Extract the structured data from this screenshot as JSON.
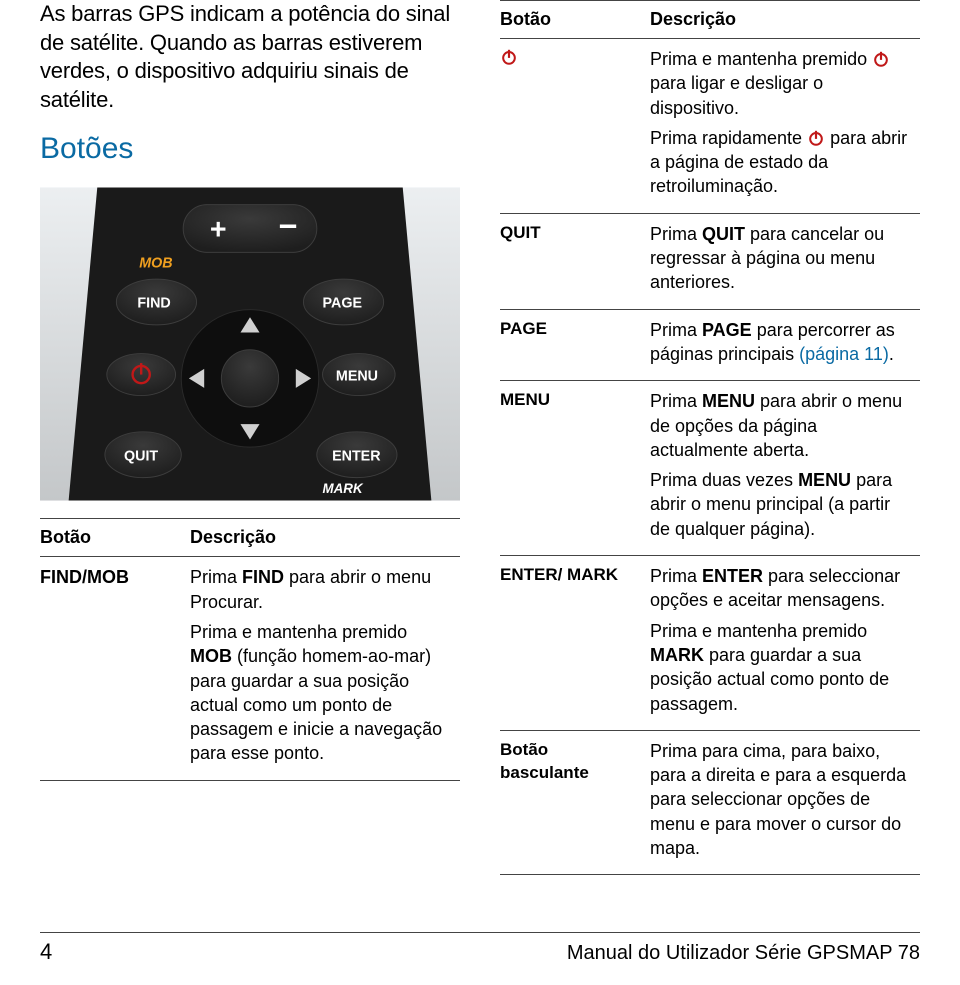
{
  "intro": "As barras GPS indicam a potência do sinal de satélite. Quando as barras estiverem verdes, o dispositivo adquiriu sinais de satélite.",
  "section_title": "Botões",
  "colors": {
    "link": "#0a6aa3",
    "text": "#000000",
    "border": "#444444",
    "power_red": "#c01818"
  },
  "remote": {
    "labels": {
      "mob": {
        "text": "MOB",
        "color": "#f0a020"
      },
      "find": "FIND",
      "page": "PAGE",
      "menu": "MENU",
      "quit": "QUIT",
      "enter": "ENTER",
      "mark": "MARK",
      "plus": "+",
      "minus": "−"
    },
    "body_color": "#1a1a1a",
    "button_fill": "#2c2c2c",
    "button_stroke": "#3d3d3d",
    "dpad_center": "#111111",
    "bg_gradient_top": "#eceff1",
    "bg_gradient_bottom": "#c4c7c9"
  },
  "left_table": {
    "headers": {
      "col1": "Botão",
      "col2": "Descrição"
    },
    "rows": [
      {
        "key": "FIND/MOB",
        "desc_parts": [
          {
            "t": "Prima "
          },
          {
            "t": "FIND",
            "b": true
          },
          {
            "t": " para abrir o  menu Procurar."
          },
          {
            "br": true
          },
          {
            "t": "Prima e mantenha premido "
          },
          {
            "t": "MOB",
            "b": true
          },
          {
            "t": " (função homem-ao-mar) para guardar a sua posição actual como um ponto de passagem e inicie a navegação para esse ponto."
          }
        ]
      }
    ]
  },
  "right_table": {
    "headers": {
      "col1": "Botão",
      "col2": "Descrição"
    },
    "rows": [
      {
        "key_is_power_icon": true,
        "desc_parts": [
          {
            "t": "Prima e mantenha premido "
          },
          {
            "power": true
          },
          {
            "t": " para ligar e desligar o dispositivo."
          },
          {
            "br": true
          },
          {
            "t": "Prima rapidamente "
          },
          {
            "power": true
          },
          {
            "t": " para abrir a página de estado da retroiluminação."
          }
        ]
      },
      {
        "key": "QUIT",
        "desc_parts": [
          {
            "t": "Prima "
          },
          {
            "t": "QUIT",
            "b": true
          },
          {
            "t": " para cancelar ou regressar à página ou menu anteriores."
          }
        ]
      },
      {
        "key": "PAGE",
        "desc_parts": [
          {
            "t": "Prima "
          },
          {
            "t": "PAGE",
            "b": true
          },
          {
            "t": " para percorrer as páginas principais "
          },
          {
            "t": "(página 11)",
            "link": true
          },
          {
            "t": "."
          }
        ]
      },
      {
        "key": "MENU",
        "desc_parts": [
          {
            "t": "Prima "
          },
          {
            "t": "MENU",
            "b": true
          },
          {
            "t": " para abrir o menu de opções da página actualmente aberta."
          },
          {
            "br": true
          },
          {
            "t": "Prima duas vezes "
          },
          {
            "t": "MENU",
            "b": true
          },
          {
            "t": " para abrir o menu principal (a partir de qualquer página)."
          }
        ]
      },
      {
        "key": "ENTER/ MARK",
        "desc_parts": [
          {
            "t": "Prima "
          },
          {
            "t": "ENTER",
            "b": true
          },
          {
            "t": " para seleccionar opções e aceitar mensagens."
          },
          {
            "br": true
          },
          {
            "t": "Prima e mantenha premido "
          },
          {
            "t": "MARK",
            "b": true
          },
          {
            "t": " para guardar a sua posição actual como ponto de passagem."
          }
        ]
      },
      {
        "key": "Botão basculante",
        "desc_parts": [
          {
            "t": "Prima para cima, para baixo, para a direita e para a esquerda para seleccionar opções de menu e para mover o cursor do mapa."
          }
        ]
      }
    ]
  },
  "footer": {
    "page": "4",
    "title": "Manual do Utilizador Série GPSMAP 78"
  }
}
